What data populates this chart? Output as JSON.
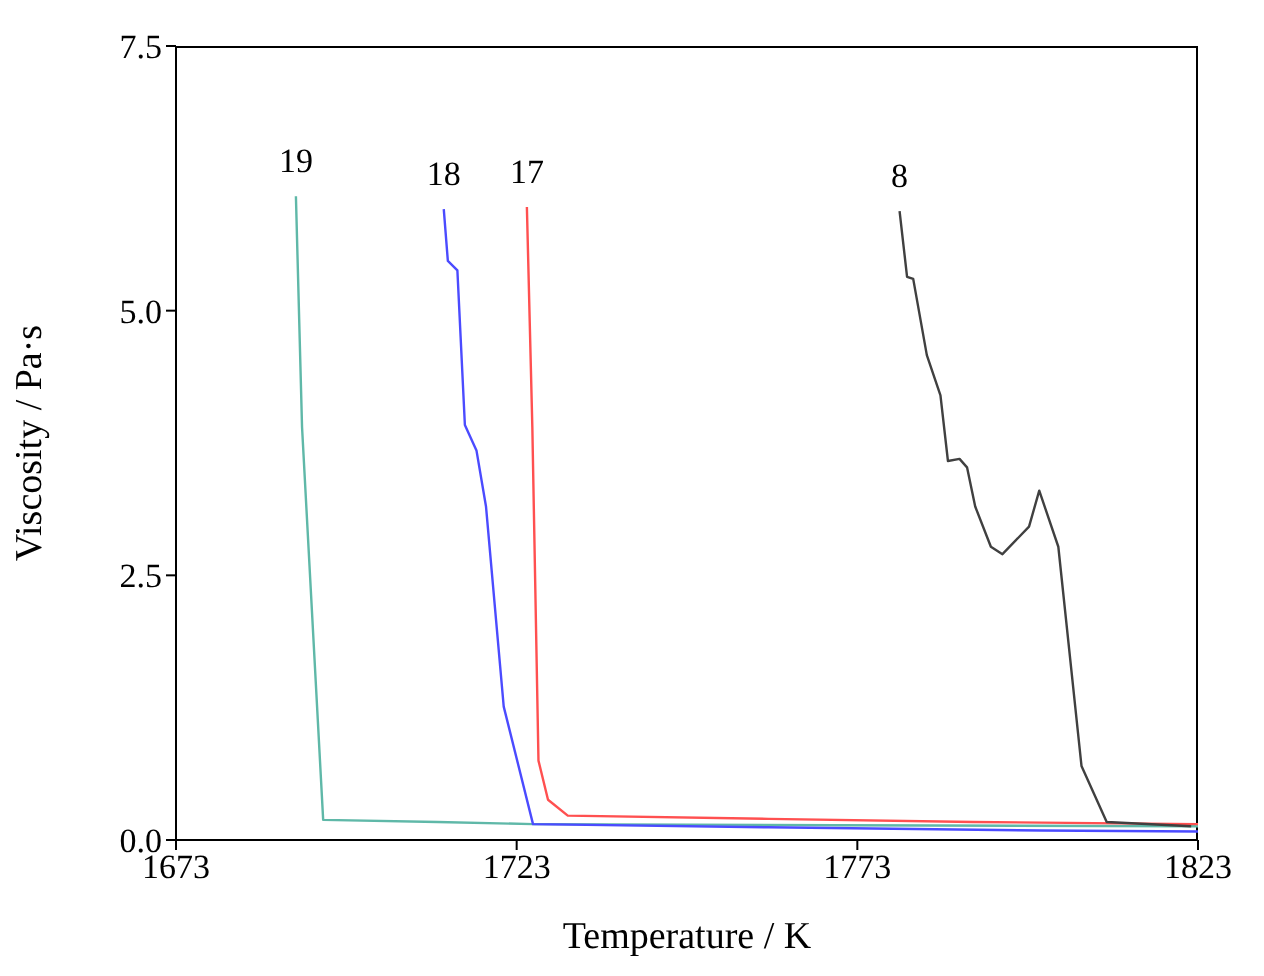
{
  "chart_data": {
    "type": "line",
    "xlabel": "Temperature / K",
    "ylabel": "Viscosity / Pa·s",
    "xlim": [
      1673,
      1823
    ],
    "xticks": [
      1673,
      1723,
      1773,
      1823
    ],
    "ylim": [
      0,
      7.5
    ],
    "yticks": [
      {
        "value": 0,
        "label": "0.0"
      },
      {
        "value": 2.5,
        "label": "2.5"
      },
      {
        "value": 5,
        "label": "5.0"
      },
      {
        "value": 7.5,
        "label": "7.5"
      }
    ],
    "grid": false,
    "legend": false,
    "marker": "none",
    "line_style": "solid",
    "series": [
      {
        "name": "19",
        "color": "#5fb8a8",
        "x": [
          1690.6,
          1691.5,
          1694.6,
          1711.4,
          1725.4,
          1770,
          1823
        ],
        "values": [
          6.08,
          3.9,
          0.19,
          0.17,
          0.15,
          0.14,
          0.13
        ]
      },
      {
        "name": "18",
        "color": "#4b4bff",
        "x": [
          1712.3,
          1712.9,
          1714.3,
          1715.4,
          1717.1,
          1718.5,
          1721.1,
          1725.4,
          1760,
          1800,
          1823
        ],
        "values": [
          5.96,
          5.47,
          5.38,
          3.92,
          3.68,
          3.15,
          1.26,
          0.15,
          0.12,
          0.09,
          0.08
        ]
      },
      {
        "name": "17",
        "color": "#ff5050",
        "x": [
          1724.5,
          1725.3,
          1726.2,
          1727.6,
          1730.5,
          1760,
          1790,
          1823
        ],
        "values": [
          5.98,
          3.9,
          0.75,
          0.38,
          0.23,
          0.2,
          0.17,
          0.15
        ]
      },
      {
        "name": "8",
        "color": "#404040",
        "x": [
          1779.2,
          1780.3,
          1781.2,
          1783.2,
          1785.2,
          1786.3,
          1788,
          1789.1,
          1790.3,
          1792.6,
          1794.3,
          1798.2,
          1799.7,
          1802.5,
          1805.9,
          1809.6,
          1822
        ],
        "values": [
          5.94,
          5.32,
          5.3,
          4.58,
          4.2,
          3.58,
          3.6,
          3.52,
          3.15,
          2.77,
          2.7,
          2.96,
          3.3,
          2.77,
          0.7,
          0.17,
          0.13
        ]
      }
    ]
  }
}
